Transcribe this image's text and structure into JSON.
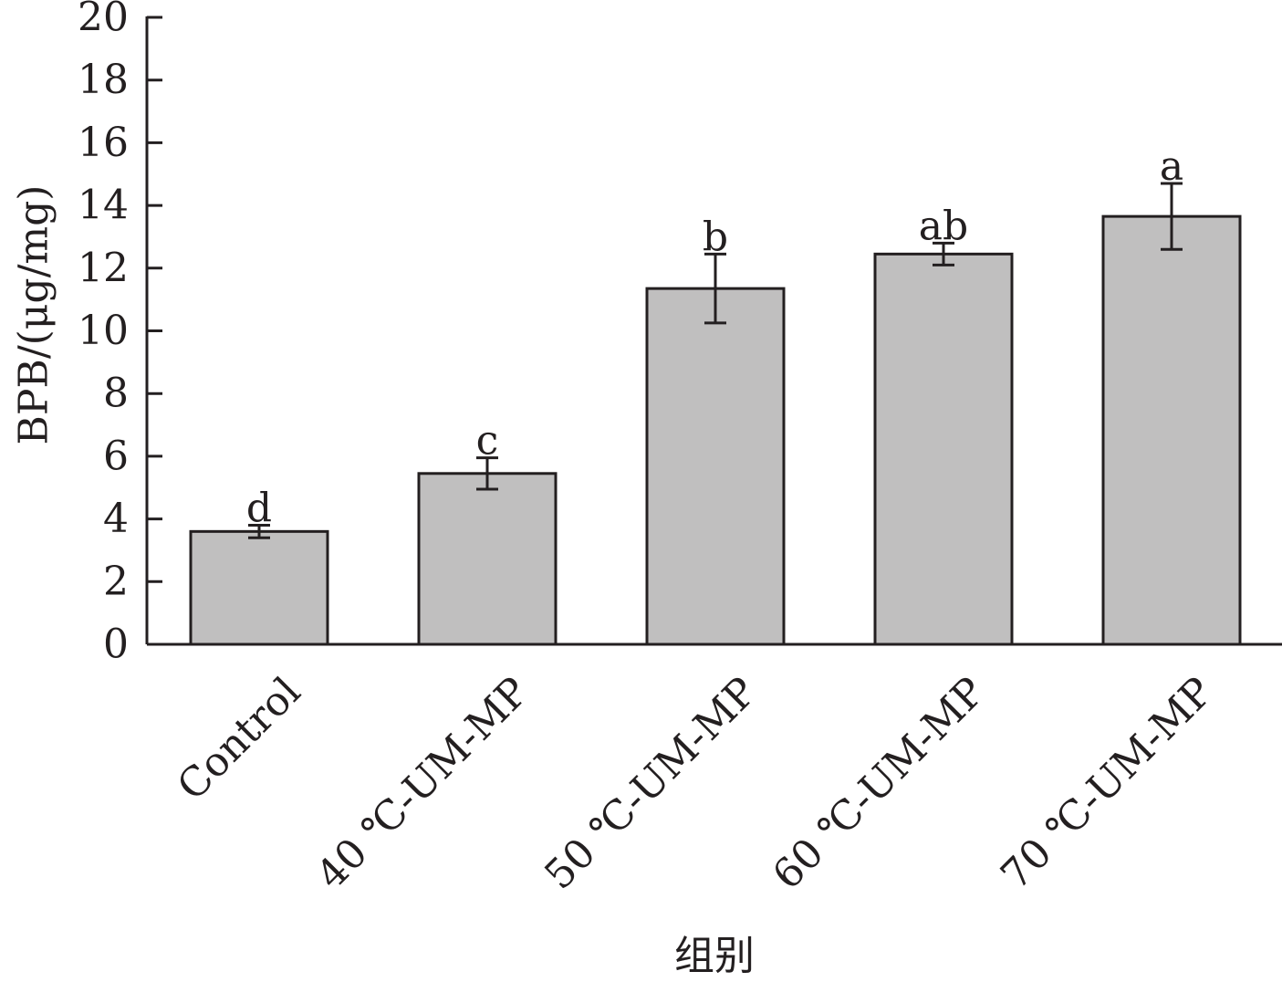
{
  "chart_data": {
    "type": "bar",
    "title": "",
    "xlabel": "组别",
    "ylabel": "BPB/(μg/mg)",
    "ylim": [
      0,
      20
    ],
    "yticks": [
      0,
      2,
      4,
      6,
      8,
      10,
      12,
      14,
      16,
      18,
      20
    ],
    "categories": [
      "Control",
      "40 ℃-UM-MP",
      "50 ℃-UM-MP",
      "60 ℃-UM-MP",
      "70 ℃-UM-MP"
    ],
    "values": [
      3.6,
      5.45,
      11.35,
      12.45,
      13.65
    ],
    "errors": [
      0.2,
      0.5,
      1.1,
      0.35,
      1.05
    ],
    "significance": [
      "d",
      "c",
      "b",
      "ab",
      "a"
    ],
    "grid": false,
    "colors": {
      "bar_fill": "#c0bfbf",
      "stroke": "#231f20"
    }
  }
}
